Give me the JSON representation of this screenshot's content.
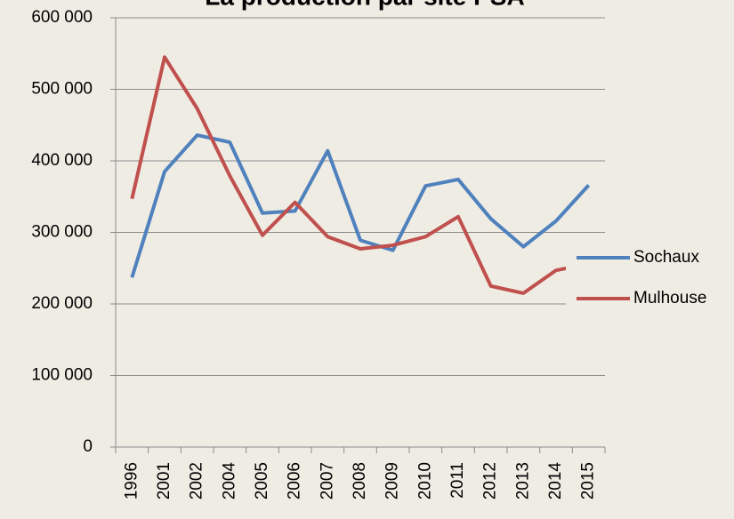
{
  "chart_data": {
    "type": "line",
    "title": "La production par site PSA",
    "categories": [
      "1996",
      "2001",
      "2002",
      "2004",
      "2005",
      "2006",
      "2007",
      "2008",
      "2009",
      "2010",
      "2011",
      "2012",
      "2013",
      "2014",
      "2015"
    ],
    "series": [
      {
        "name": "Sochaux",
        "color": "#4f81bd",
        "values": [
          237000,
          385000,
          436000,
          426000,
          327000,
          330000,
          414000,
          289000,
          275000,
          365000,
          374000,
          319000,
          280000,
          316000,
          366000
        ]
      },
      {
        "name": "Mulhouse",
        "color": "#c0504d",
        "values": [
          347000,
          545000,
          473000,
          379000,
          296000,
          342000,
          294000,
          277000,
          282000,
          294000,
          322000,
          225000,
          215000,
          247000,
          256000
        ]
      }
    ],
    "ylim": [
      0,
      600000
    ],
    "yticks": [
      0,
      {
        "value": 100000,
        "label": "100 000"
      },
      {
        "value": 200000,
        "label": "200 000"
      },
      {
        "value": 300000,
        "label": "300 000"
      },
      {
        "value": 400000,
        "label": "400 000"
      },
      {
        "value": 500000,
        "label": "500 000"
      },
      {
        "value": 600000,
        "label": "600 000"
      }
    ],
    "grid": true,
    "legend": "right"
  }
}
